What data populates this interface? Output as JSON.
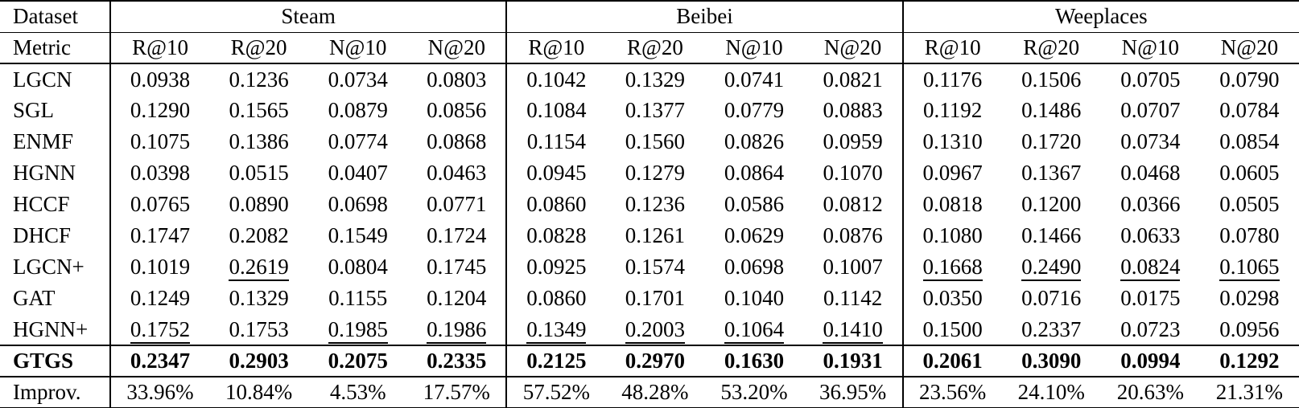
{
  "table": {
    "corner": {
      "dataset_label": "Dataset",
      "metric_label": "Metric"
    },
    "datasets": [
      "Steam",
      "Beibei",
      "Weeplaces"
    ],
    "metrics": [
      "R@10",
      "R@20",
      "N@10",
      "N@20"
    ],
    "rows": [
      {
        "model": "LGCN",
        "values": [
          "0.0938",
          "0.1236",
          "0.0734",
          "0.0803",
          "0.1042",
          "0.1329",
          "0.0741",
          "0.0821",
          "0.1176",
          "0.1506",
          "0.0705",
          "0.0790"
        ],
        "underline": [],
        "bold": false
      },
      {
        "model": "SGL",
        "values": [
          "0.1290",
          "0.1565",
          "0.0879",
          "0.0856",
          "0.1084",
          "0.1377",
          "0.0779",
          "0.0883",
          "0.1192",
          "0.1486",
          "0.0707",
          "0.0784"
        ],
        "underline": [],
        "bold": false
      },
      {
        "model": "ENMF",
        "values": [
          "0.1075",
          "0.1386",
          "0.0774",
          "0.0868",
          "0.1154",
          "0.1560",
          "0.0826",
          "0.0959",
          "0.1310",
          "0.1720",
          "0.0734",
          "0.0854"
        ],
        "underline": [],
        "bold": false
      },
      {
        "model": "HGNN",
        "values": [
          "0.0398",
          "0.0515",
          "0.0407",
          "0.0463",
          "0.0945",
          "0.1279",
          "0.0864",
          "0.1070",
          "0.0967",
          "0.1367",
          "0.0468",
          "0.0605"
        ],
        "underline": [],
        "bold": false
      },
      {
        "model": "HCCF",
        "values": [
          "0.0765",
          "0.0890",
          "0.0698",
          "0.0771",
          "0.0860",
          "0.1236",
          "0.0586",
          "0.0812",
          "0.0818",
          "0.1200",
          "0.0366",
          "0.0505"
        ],
        "underline": [],
        "bold": false
      },
      {
        "model": "DHCF",
        "values": [
          "0.1747",
          "0.2082",
          "0.1549",
          "0.1724",
          "0.0828",
          "0.1261",
          "0.0629",
          "0.0876",
          "0.1080",
          "0.1466",
          "0.0633",
          "0.0780"
        ],
        "underline": [],
        "bold": false
      },
      {
        "model": "LGCN+",
        "values": [
          "0.1019",
          "0.2619",
          "0.0804",
          "0.1745",
          "0.0925",
          "0.1574",
          "0.0698",
          "0.1007",
          "0.1668",
          "0.2490",
          "0.0824",
          "0.1065"
        ],
        "underline": [
          1,
          8,
          9,
          10,
          11
        ],
        "bold": false
      },
      {
        "model": "GAT",
        "values": [
          "0.1249",
          "0.1329",
          "0.1155",
          "0.1204",
          "0.0860",
          "0.1701",
          "0.1040",
          "0.1142",
          "0.0350",
          "0.0716",
          "0.0175",
          "0.0298"
        ],
        "underline": [],
        "bold": false
      },
      {
        "model": "HGNN+",
        "values": [
          "0.1752",
          "0.1753",
          "0.1985",
          "0.1986",
          "0.1349",
          "0.2003",
          "0.1064",
          "0.1410",
          "0.1500",
          "0.2337",
          "0.0723",
          "0.0956"
        ],
        "underline": [
          0,
          2,
          3,
          4,
          5,
          6,
          7
        ],
        "bold": false
      },
      {
        "model": "GTGS",
        "values": [
          "0.2347",
          "0.2903",
          "0.2075",
          "0.2335",
          "0.2125",
          "0.2970",
          "0.1630",
          "0.1931",
          "0.2061",
          "0.3090",
          "0.0994",
          "0.1292"
        ],
        "underline": [],
        "bold": true
      }
    ],
    "improvement": {
      "label": "Improv.",
      "values": [
        "33.96%",
        "10.84%",
        "4.53%",
        "17.57%",
        "57.52%",
        "48.28%",
        "53.20%",
        "36.95%",
        "23.56%",
        "24.10%",
        "20.63%",
        "21.31%"
      ]
    }
  }
}
